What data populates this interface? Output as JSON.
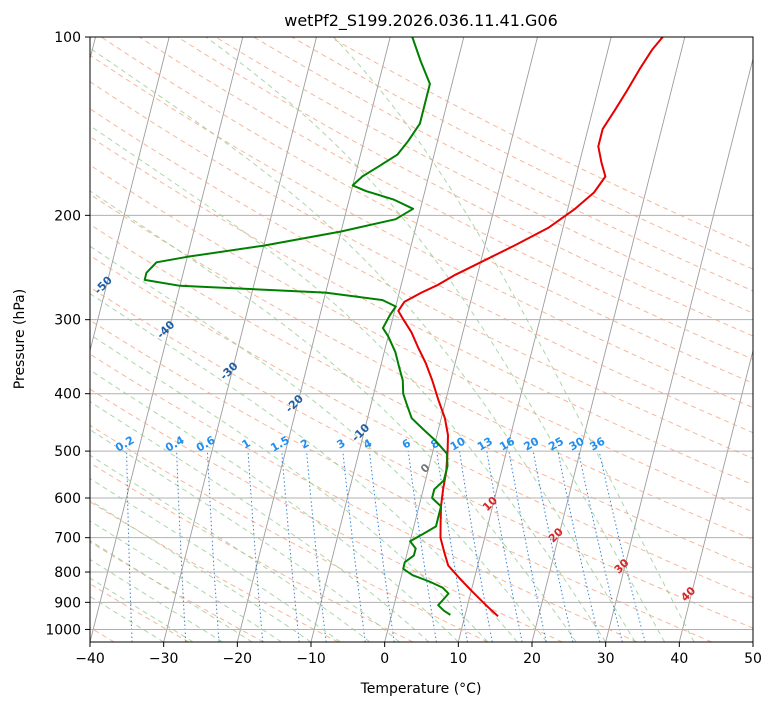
{
  "chart_data": {
    "type": "line",
    "title": "wetPf2_S199.2026.036.11.41.G06",
    "xlabel": "Temperature (°C)",
    "ylabel": "Pressure (hPa)",
    "xlim": [
      -40,
      50
    ],
    "ylim": [
      1050,
      100
    ],
    "y_scale": "log",
    "grid": true,
    "x_ticks": [
      -40,
      -30,
      -20,
      -10,
      0,
      10,
      20,
      30,
      40,
      50
    ],
    "y_ticks": [
      100,
      200,
      300,
      400,
      500,
      600,
      700,
      800,
      900,
      1000
    ],
    "skew": true,
    "background_lines": {
      "dry_adiabats": [
        -100,
        -90,
        -80,
        -70,
        -60,
        -50,
        -40,
        -30,
        -20,
        -10,
        0,
        10,
        20,
        30,
        40
      ],
      "moist_adiabats": [
        -30,
        -20,
        -10,
        0,
        10,
        20,
        30,
        40
      ],
      "mixing_ratios": [
        0.1,
        0.2,
        0.4,
        0.6,
        1,
        1.5,
        2,
        3,
        4,
        6,
        8,
        10,
        13,
        16,
        20,
        25,
        30,
        36
      ],
      "colors": {
        "isotherm": "#8c8c8c",
        "dry_adiabat": "#f4a582",
        "moist_adiabat": "#8fc98f",
        "mixing_ratio": "#1f77d4",
        "dry_label": "#1f5fa8",
        "moist_label": "#d62728",
        "mixing_label": "#1f8ef0",
        "zero_label": "#777777"
      }
    },
    "series": [
      {
        "name": "",
        "color": "#e60000",
        "points": [
          [
            14.5,
            950
          ],
          [
            13.5,
            930
          ],
          [
            12,
            900
          ],
          [
            10,
            860
          ],
          [
            8,
            820
          ],
          [
            6,
            780
          ],
          [
            5,
            740
          ],
          [
            4,
            700
          ],
          [
            3.5,
            660
          ],
          [
            3,
            620
          ],
          [
            2.7,
            580
          ],
          [
            2.5,
            540
          ],
          [
            2,
            500
          ],
          [
            1.5,
            470
          ],
          [
            0.5,
            440
          ],
          [
            -1,
            410
          ],
          [
            -2.5,
            380
          ],
          [
            -4,
            355
          ],
          [
            -5.5,
            335
          ],
          [
            -7,
            315
          ],
          [
            -8.5,
            300
          ],
          [
            -9.5,
            290
          ],
          [
            -9,
            280
          ],
          [
            -7,
            270
          ],
          [
            -5,
            262
          ],
          [
            -3,
            252
          ],
          [
            0,
            240
          ],
          [
            4,
            225
          ],
          [
            8,
            210
          ],
          [
            11,
            195
          ],
          [
            13,
            183
          ],
          [
            14,
            172
          ],
          [
            13,
            163
          ],
          [
            12,
            153
          ],
          [
            12,
            143
          ],
          [
            13,
            133
          ],
          [
            14,
            123
          ],
          [
            15,
            113
          ],
          [
            16,
            105
          ],
          [
            17,
            100
          ]
        ]
      },
      {
        "name": "",
        "color": "#008000",
        "points": [
          [
            8,
            945
          ],
          [
            7,
            930
          ],
          [
            6,
            910
          ],
          [
            6.5,
            890
          ],
          [
            7,
            870
          ],
          [
            6,
            850
          ],
          [
            4,
            830
          ],
          [
            1.5,
            810
          ],
          [
            0,
            790
          ],
          [
            0,
            770
          ],
          [
            1,
            750
          ],
          [
            1,
            730
          ],
          [
            0,
            710
          ],
          [
            1.5,
            690
          ],
          [
            3,
            670
          ],
          [
            3,
            640
          ],
          [
            3,
            620
          ],
          [
            1.5,
            600
          ],
          [
            1.5,
            580
          ],
          [
            2.5,
            560
          ],
          [
            2.5,
            530
          ],
          [
            2,
            505
          ],
          [
            0,
            480
          ],
          [
            -2,
            460
          ],
          [
            -4,
            440
          ],
          [
            -5,
            420
          ],
          [
            -6,
            400
          ],
          [
            -6.5,
            380
          ],
          [
            -7.5,
            360
          ],
          [
            -8.5,
            340
          ],
          [
            -10,
            320
          ],
          [
            -11,
            310
          ],
          [
            -10.5,
            295
          ],
          [
            -10,
            285
          ],
          [
            -12,
            278
          ],
          [
            -20,
            270
          ],
          [
            -40,
            263
          ],
          [
            -45,
            257
          ],
          [
            -45,
            250
          ],
          [
            -44,
            240
          ],
          [
            -40,
            235
          ],
          [
            -30,
            225
          ],
          [
            -20,
            213
          ],
          [
            -13,
            203
          ],
          [
            -11,
            195
          ],
          [
            -14,
            188
          ],
          [
            -18,
            182
          ],
          [
            -20,
            178
          ],
          [
            -19,
            172
          ],
          [
            -17,
            165
          ],
          [
            -15,
            158
          ],
          [
            -14,
            150
          ],
          [
            -13,
            140
          ],
          [
            -13,
            130
          ],
          [
            -13,
            120
          ],
          [
            -15,
            110
          ],
          [
            -17,
            100
          ]
        ]
      }
    ]
  }
}
